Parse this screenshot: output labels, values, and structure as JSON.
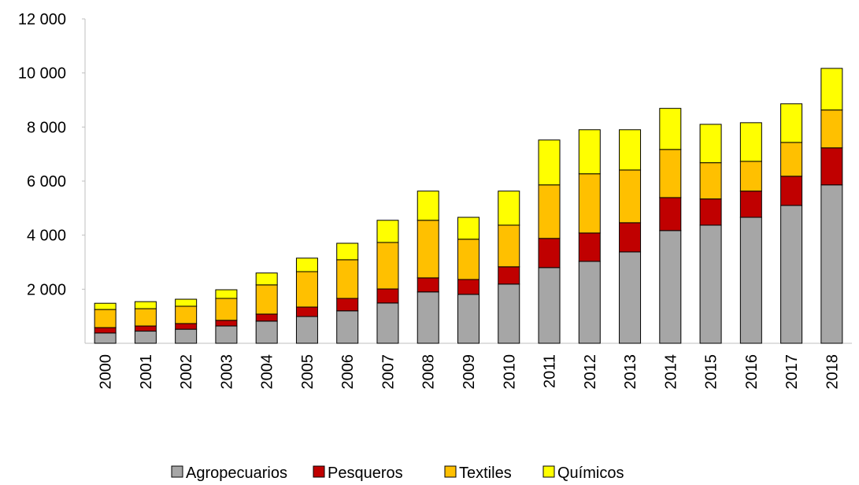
{
  "chart_data": {
    "type": "stacked_bar",
    "categories": [
      "2000",
      "2001",
      "2002",
      "2003",
      "2004",
      "2005",
      "2006",
      "2007",
      "2008",
      "2009",
      "2010",
      "2011",
      "2012",
      "2013",
      "2014",
      "2015",
      "2016",
      "2017",
      "2018"
    ],
    "series": [
      {
        "name": "Agropecuarios",
        "color": "#a6a6a6",
        "values": [
          380,
          450,
          520,
          640,
          820,
          990,
          1200,
          1490,
          1900,
          1810,
          2190,
          2800,
          3030,
          3380,
          4170,
          4370,
          4660,
          5100,
          5860
        ]
      },
      {
        "name": "Pesqueros",
        "color": "#c00000",
        "values": [
          200,
          190,
          210,
          210,
          260,
          350,
          460,
          520,
          520,
          550,
          640,
          1080,
          1050,
          1080,
          1220,
          970,
          970,
          1080,
          1370
        ]
      },
      {
        "name": "Textiles",
        "color": "#ffc000",
        "values": [
          670,
          640,
          640,
          810,
          1080,
          1310,
          1430,
          1720,
          2130,
          1490,
          1540,
          1980,
          2190,
          1950,
          1780,
          1340,
          1100,
          1250,
          1400
        ]
      },
      {
        "name": "Químicos",
        "color": "#ffff00",
        "values": [
          230,
          260,
          260,
          320,
          440,
          500,
          610,
          820,
          1080,
          810,
          1260,
          1660,
          1630,
          1490,
          1520,
          1420,
          1430,
          1430,
          1540
        ]
      }
    ],
    "ylim": [
      0,
      12000
    ],
    "yticks": [
      {
        "value": 2000,
        "label": "2 000"
      },
      {
        "value": 4000,
        "label": "4 000"
      },
      {
        "value": 6000,
        "label": "6 000"
      },
      {
        "value": 8000,
        "label": "8 000"
      },
      {
        "value": 10000,
        "label": "10 000"
      },
      {
        "value": 12000,
        "label": "12 000"
      }
    ],
    "legend": "bottom"
  }
}
